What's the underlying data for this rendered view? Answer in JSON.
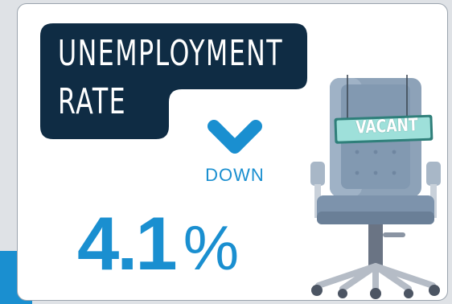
{
  "title": {
    "line1": "UNEMPLOYMENT",
    "line2": "RATE"
  },
  "trend": {
    "direction_label": "DOWN",
    "icon": "chevron-down-icon"
  },
  "rate": {
    "value": "4.1",
    "unit": "%"
  },
  "sign": {
    "text": "VACANT"
  },
  "colors": {
    "title_background": "#0f2c44",
    "accent": "#1a8fd0",
    "chair": "#8da2b8",
    "sign": "#9ee0da"
  }
}
